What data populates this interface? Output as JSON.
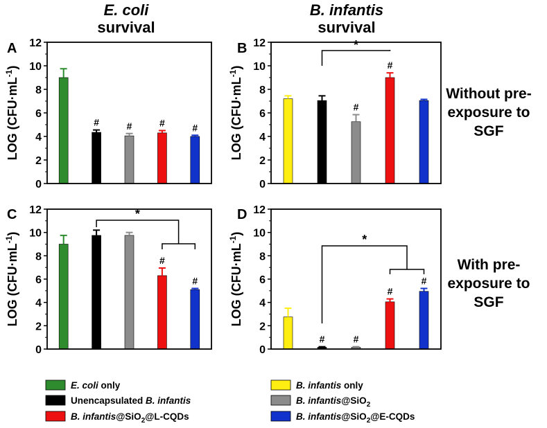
{
  "columns": {
    "left": {
      "organism": "E. coli",
      "line2": "survival"
    },
    "right": {
      "organism": "B. infantis",
      "line2": "survival"
    }
  },
  "rows": {
    "top": [
      "Without pre-",
      "exposure to",
      "SGF"
    ],
    "bottom": [
      "With pre-",
      "exposure to",
      "SGF"
    ]
  },
  "ylabel": {
    "main": "LOG (CFU·mL",
    "sup": "-1",
    "close": ")"
  },
  "colors": {
    "green": "#2e8b2e",
    "black": "#000000",
    "gray": "#8c8c8c",
    "red": "#ee1111",
    "blue": "#1133cc",
    "yellow": "#ffee11"
  },
  "chart_data": [
    {
      "panel": "A",
      "type": "bar",
      "ylim": [
        0,
        12
      ],
      "yticks": [
        0,
        2,
        4,
        6,
        8,
        10,
        12
      ],
      "categories": [
        "E. coli only",
        "Unencapsulated B. infantis",
        "B. infantis@SiO2",
        "B. infantis@SiO2@L-CQDs",
        "B. infantis@SiO2@E-CQDs"
      ],
      "values": [
        9.0,
        4.35,
        4.05,
        4.3,
        4.0
      ],
      "errors": [
        0.75,
        0.2,
        0.2,
        0.2,
        0.1
      ],
      "colors": [
        "green",
        "black",
        "gray",
        "red",
        "blue"
      ],
      "marks": [
        "",
        "#",
        "#",
        "#",
        "#"
      ],
      "significance": []
    },
    {
      "panel": "B",
      "type": "bar",
      "ylim": [
        0,
        12
      ],
      "yticks": [
        0,
        2,
        4,
        6,
        8,
        10,
        12
      ],
      "categories": [
        "B. infantis only",
        "Unencapsulated B. infantis",
        "B. infantis@SiO2",
        "B. infantis@SiO2@L-CQDs",
        "B. infantis@SiO2@E-CQDs"
      ],
      "values": [
        7.2,
        7.05,
        5.25,
        9.0,
        7.05
      ],
      "errors": [
        0.25,
        0.4,
        0.6,
        0.4,
        0.1
      ],
      "colors": [
        "yellow",
        "black",
        "gray",
        "red",
        "blue"
      ],
      "marks": [
        "",
        "",
        "#",
        "#",
        ""
      ],
      "significance": [
        {
          "from": 1,
          "to": 3,
          "label": "*"
        }
      ]
    },
    {
      "panel": "C",
      "type": "bar",
      "ylim": [
        0,
        12
      ],
      "yticks": [
        0,
        2,
        4,
        6,
        8,
        10,
        12
      ],
      "categories": [
        "E. coli only",
        "Unencapsulated B. infantis",
        "B. infantis@SiO2",
        "B. infantis@SiO2@L-CQDs",
        "B. infantis@SiO2@E-CQDs"
      ],
      "values": [
        9.0,
        9.75,
        9.75,
        6.3,
        5.1
      ],
      "errors": [
        0.75,
        0.45,
        0.25,
        0.65,
        0.1
      ],
      "colors": [
        "green",
        "black",
        "gray",
        "red",
        "blue"
      ],
      "marks": [
        "",
        "",
        "",
        "#",
        "#"
      ],
      "significance": [
        {
          "from": 1,
          "to_group": [
            3,
            4
          ],
          "label": "*"
        }
      ]
    },
    {
      "panel": "D",
      "type": "bar",
      "ylim": [
        0,
        12
      ],
      "yticks": [
        0,
        2,
        4,
        6,
        8,
        10,
        12
      ],
      "categories": [
        "B. infantis only",
        "Unencapsulated B. infantis",
        "B. infantis@SiO2",
        "B. infantis@SiO2@L-CQDs",
        "B. infantis@SiO2@E-CQDs"
      ],
      "values": [
        2.75,
        0.15,
        0.15,
        4.05,
        4.95
      ],
      "errors": [
        0.75,
        0.05,
        0.05,
        0.25,
        0.25
      ],
      "colors": [
        "yellow",
        "black",
        "gray",
        "red",
        "blue"
      ],
      "marks": [
        "",
        "#",
        "#",
        "#",
        "#"
      ],
      "significance": [
        {
          "from": 1,
          "to_group": [
            3,
            4
          ],
          "label": "*"
        }
      ]
    }
  ],
  "legend": [
    {
      "color": "green",
      "parts": [
        {
          "t": "E. coli",
          "i": true
        },
        {
          "t": " only"
        }
      ]
    },
    {
      "color": "yellow",
      "parts": [
        {
          "t": "B. infantis",
          "i": true
        },
        {
          "t": " only"
        }
      ]
    },
    {
      "color": "black",
      "parts": [
        {
          "t": "Unencapsulated "
        },
        {
          "t": "B. infantis",
          "i": true
        }
      ]
    },
    {
      "color": "gray",
      "parts": [
        {
          "t": "B. infantis",
          "i": true
        },
        {
          "t": "@SiO"
        },
        {
          "t": "2",
          "sub": true
        }
      ]
    },
    {
      "color": "red",
      "parts": [
        {
          "t": "B. infantis",
          "i": true
        },
        {
          "t": "@SiO"
        },
        {
          "t": "2",
          "sub": true
        },
        {
          "t": "@L-CQDs"
        }
      ]
    },
    {
      "color": "blue",
      "parts": [
        {
          "t": "B. infantis",
          "i": true
        },
        {
          "t": "@SiO"
        },
        {
          "t": "2",
          "sub": true
        },
        {
          "t": "@E-CQDs"
        }
      ]
    }
  ]
}
